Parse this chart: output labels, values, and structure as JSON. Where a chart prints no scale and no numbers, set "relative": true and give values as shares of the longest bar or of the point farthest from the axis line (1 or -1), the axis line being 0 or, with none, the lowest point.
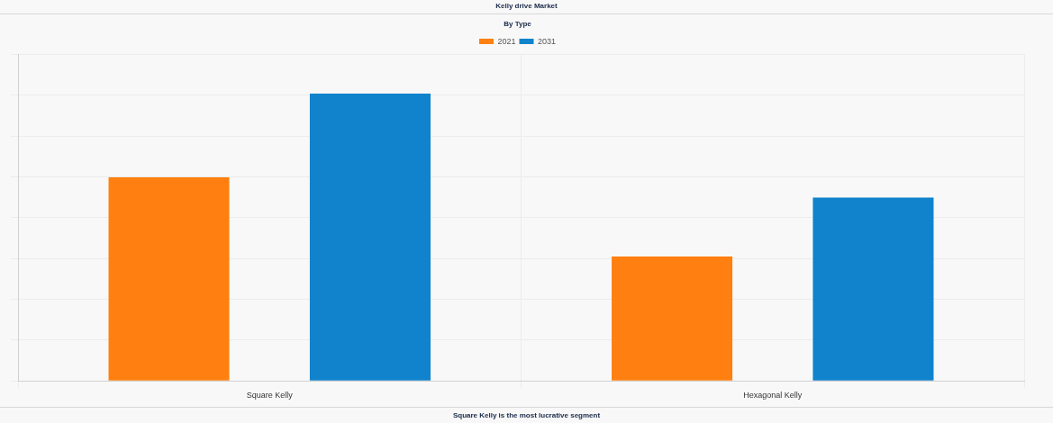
{
  "chart_data": {
    "type": "bar",
    "title": "Kelly drive Market",
    "subtitle": "By Type",
    "categories": [
      "Square Kelly",
      "Hexagonal Kelly"
    ],
    "series": [
      {
        "name": "2021",
        "color": "#ff8010",
        "values": [
          0.709,
          0.433
        ]
      },
      {
        "name": "2031",
        "color": "#1083cc",
        "values": [
          1,
          0.638
        ]
      }
    ],
    "relative": true,
    "grid": true,
    "legend": "top",
    "annotations": [
      "Square Kelly is the most lucrative segment"
    ]
  }
}
